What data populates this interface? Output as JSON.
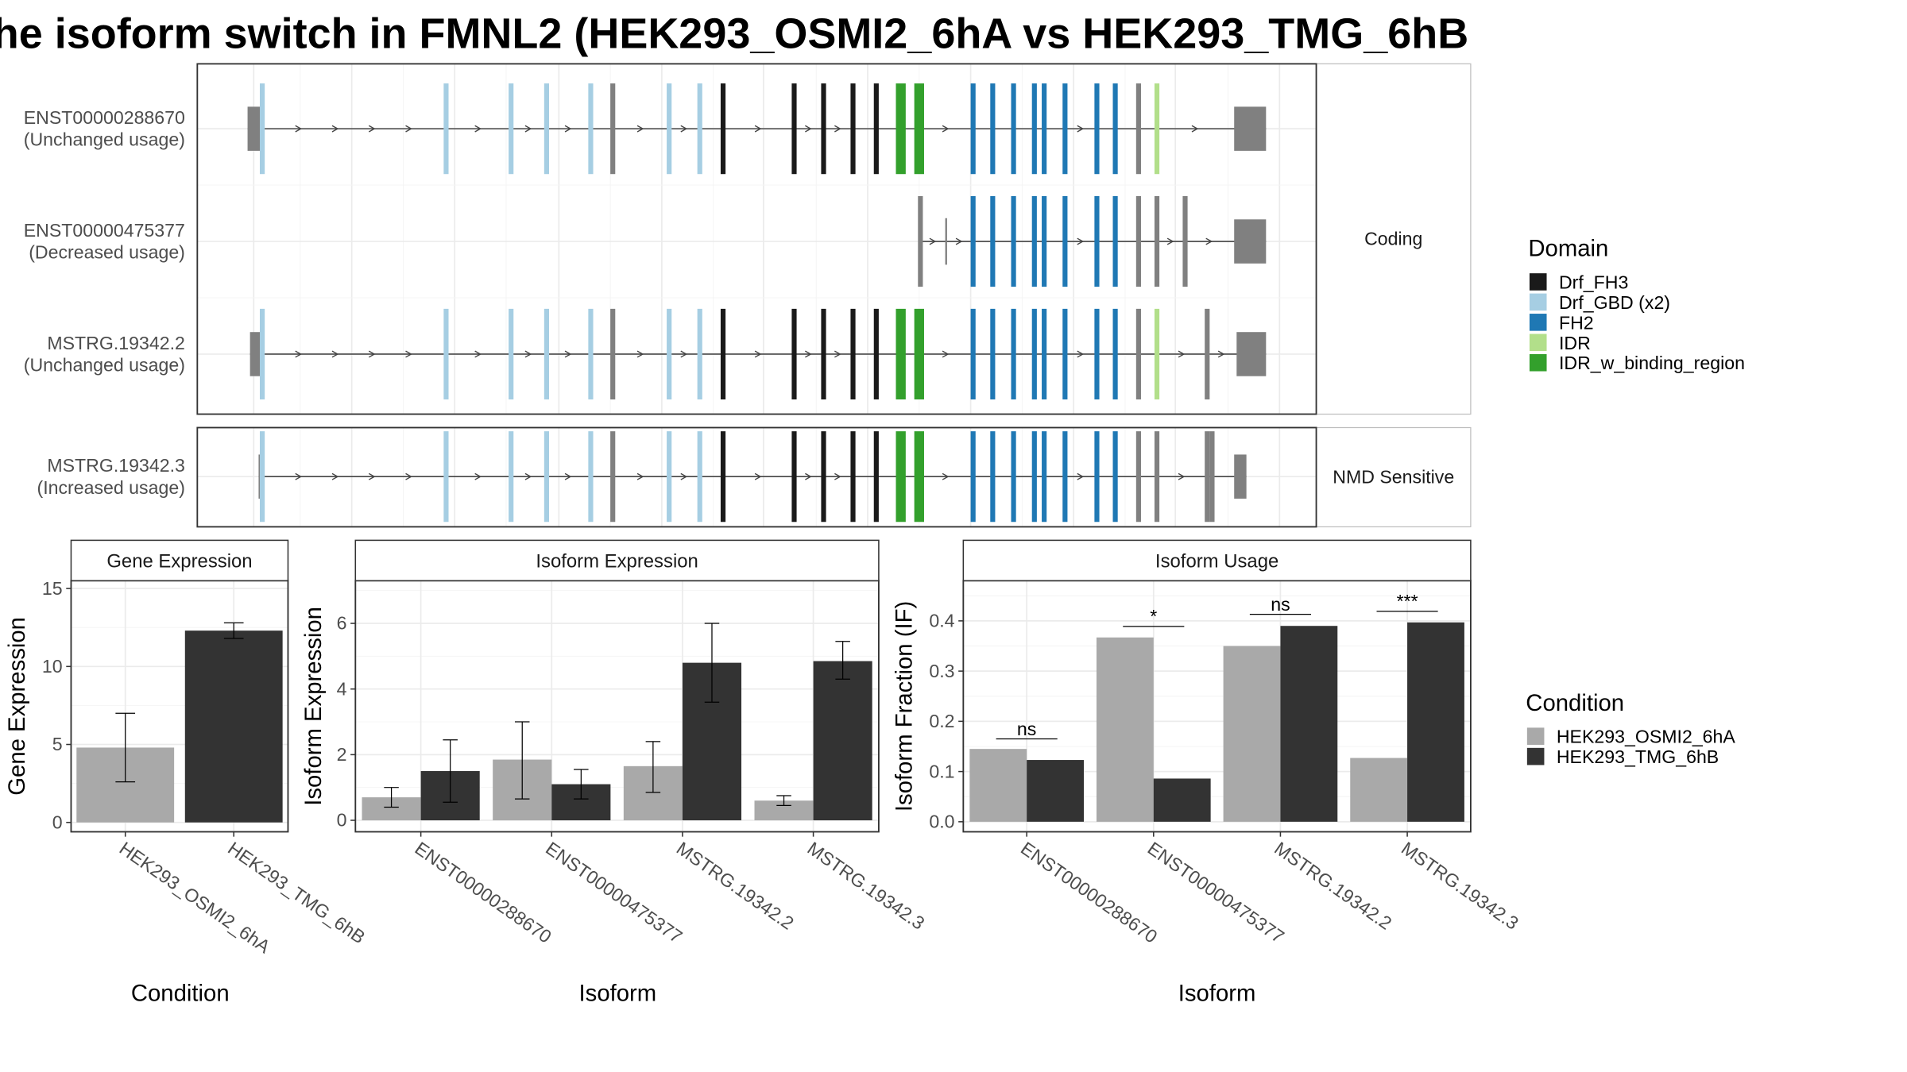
{
  "title": "he isoform switch in FMNL2 (HEK293_OSMI2_6hA vs HEK293_TMG_6hB",
  "colors": {
    "Drf_FH3": "#1a1a1a",
    "Drf_GBD (x2)": "#a6cee3",
    "FH2": "#1f78b4",
    "IDR": "#b2df8a",
    "IDR_w_binding_region": "#33a02c",
    "none": "#808080",
    "cond1": "#a9a9a9",
    "cond2": "#333333"
  },
  "structure": {
    "facets": [
      "Coding",
      "NMD Sensitive"
    ],
    "transcripts": [
      {
        "name": "ENST00000288670",
        "usage": "(Unchanged usage)",
        "facet": 0,
        "start": 202,
        "end": 1033,
        "utr5": [
          202,
          214
        ],
        "utr3": [
          1007,
          1033
        ],
        "exons": [
          [
            214,
            "Drf_GBD (x2)"
          ],
          [
            364,
            "Drf_GBD (x2)"
          ],
          [
            417,
            "Drf_GBD (x2)"
          ],
          [
            446,
            "Drf_GBD (x2)"
          ],
          [
            482,
            "Drf_GBD (x2)"
          ],
          [
            500,
            "none"
          ],
          [
            546,
            "Drf_GBD (x2)"
          ],
          [
            571,
            "Drf_GBD (x2)"
          ],
          [
            590,
            "Drf_FH3"
          ],
          [
            648,
            "Drf_FH3"
          ],
          [
            672,
            "Drf_FH3"
          ],
          [
            696,
            "Drf_FH3"
          ],
          [
            715,
            "Drf_FH3"
          ],
          [
            735,
            "IDR_w_binding_region"
          ],
          [
            750,
            "IDR_w_binding_region"
          ],
          [
            794,
            "FH2"
          ],
          [
            810,
            "FH2"
          ],
          [
            827,
            "FH2"
          ],
          [
            844,
            "FH2"
          ],
          [
            852,
            "FH2"
          ],
          [
            869,
            "FH2"
          ],
          [
            895,
            "FH2"
          ],
          [
            910,
            "FH2"
          ],
          [
            929,
            "none"
          ],
          [
            944,
            "IDR"
          ]
        ]
      },
      {
        "name": "ENST00000475377",
        "usage": "(Decreased usage)",
        "facet": 0,
        "start": 750,
        "end": 1033,
        "utr5": [
          750,
          750
        ],
        "utr3": [
          1007,
          1033
        ],
        "exons": [
          [
            751,
            "none"
          ],
          [
            772,
            "none"
          ],
          [
            794,
            "FH2"
          ],
          [
            810,
            "FH2"
          ],
          [
            827,
            "FH2"
          ],
          [
            844,
            "FH2"
          ],
          [
            852,
            "FH2"
          ],
          [
            869,
            "FH2"
          ],
          [
            895,
            "FH2"
          ],
          [
            910,
            "FH2"
          ],
          [
            929,
            "none"
          ],
          [
            944,
            "none"
          ],
          [
            967,
            "none"
          ]
        ]
      },
      {
        "name": "MSTRG.19342.2",
        "usage": "(Unchanged usage)",
        "facet": 0,
        "start": 204,
        "end": 1033,
        "utr5": [
          204,
          214
        ],
        "utr3": [
          1009,
          1033
        ],
        "exons": [
          [
            214,
            "Drf_GBD (x2)"
          ],
          [
            364,
            "Drf_GBD (x2)"
          ],
          [
            417,
            "Drf_GBD (x2)"
          ],
          [
            446,
            "Drf_GBD (x2)"
          ],
          [
            482,
            "Drf_GBD (x2)"
          ],
          [
            500,
            "none"
          ],
          [
            546,
            "Drf_GBD (x2)"
          ],
          [
            571,
            "Drf_GBD (x2)"
          ],
          [
            590,
            "Drf_FH3"
          ],
          [
            648,
            "Drf_FH3"
          ],
          [
            672,
            "Drf_FH3"
          ],
          [
            696,
            "Drf_FH3"
          ],
          [
            715,
            "Drf_FH3"
          ],
          [
            735,
            "IDR_w_binding_region"
          ],
          [
            750,
            "IDR_w_binding_region"
          ],
          [
            794,
            "FH2"
          ],
          [
            810,
            "FH2"
          ],
          [
            827,
            "FH2"
          ],
          [
            844,
            "FH2"
          ],
          [
            852,
            "FH2"
          ],
          [
            869,
            "FH2"
          ],
          [
            895,
            "FH2"
          ],
          [
            910,
            "FH2"
          ],
          [
            929,
            "none"
          ],
          [
            944,
            "IDR"
          ],
          [
            985,
            "none"
          ]
        ]
      },
      {
        "name": "MSTRG.19342.3",
        "usage": "(Increased usage)",
        "facet": 1,
        "start": 211,
        "end": 1017,
        "utr5": [
          211,
          214
        ],
        "utr3": [
          1007,
          1017
        ],
        "exons": [
          [
            214,
            "Drf_GBD (x2)"
          ],
          [
            364,
            "Drf_GBD (x2)"
          ],
          [
            417,
            "Drf_GBD (x2)"
          ],
          [
            446,
            "Drf_GBD (x2)"
          ],
          [
            482,
            "Drf_GBD (x2)"
          ],
          [
            500,
            "none"
          ],
          [
            546,
            "Drf_GBD (x2)"
          ],
          [
            571,
            "Drf_GBD (x2)"
          ],
          [
            590,
            "Drf_FH3"
          ],
          [
            648,
            "Drf_FH3"
          ],
          [
            672,
            "Drf_FH3"
          ],
          [
            696,
            "Drf_FH3"
          ],
          [
            715,
            "Drf_FH3"
          ],
          [
            735,
            "IDR_w_binding_region"
          ],
          [
            750,
            "IDR_w_binding_region"
          ],
          [
            794,
            "FH2"
          ],
          [
            810,
            "FH2"
          ],
          [
            827,
            "FH2"
          ],
          [
            844,
            "FH2"
          ],
          [
            852,
            "FH2"
          ],
          [
            869,
            "FH2"
          ],
          [
            895,
            "FH2"
          ],
          [
            910,
            "FH2"
          ],
          [
            929,
            "none"
          ],
          [
            944,
            "none"
          ],
          [
            985,
            "none"
          ],
          [
            989,
            "none"
          ]
        ]
      }
    ]
  },
  "legend_domain": {
    "title": "Domain",
    "items": [
      "Drf_FH3",
      "Drf_GBD (x2)",
      "FH2",
      "IDR",
      "IDR_w_binding_region"
    ]
  },
  "legend_condition": {
    "title": "Condition",
    "items": [
      "HEK293_OSMI2_6hA",
      "HEK293_TMG_6hB"
    ]
  },
  "chart_data": [
    {
      "type": "bar",
      "title": "Gene Expression",
      "xlabel": "Condition",
      "ylabel": "Gene Expression",
      "categories": [
        "HEK293_OSMI2_6hA",
        "HEK293_TMG_6hB"
      ],
      "values": [
        4.8,
        12.3
      ],
      "errors": [
        [
          2.6,
          7.0
        ],
        [
          11.8,
          12.8
        ]
      ],
      "ylim": [
        -0.6,
        15.5
      ],
      "yticks": [
        0,
        5,
        10,
        15
      ]
    },
    {
      "type": "bar",
      "title": "Isoform Expression",
      "xlabel": "Isoform",
      "ylabel": "Isoform Expression",
      "categories": [
        "ENST00000288670",
        "ENST00000475377",
        "MSTRG.19342.2",
        "MSTRG.19342.3"
      ],
      "series": [
        {
          "name": "HEK293_OSMI2_6hA",
          "values": [
            0.7,
            1.85,
            1.65,
            0.6
          ],
          "errors": [
            [
              0.4,
              1.0
            ],
            [
              0.65,
              3.0
            ],
            [
              0.85,
              2.4
            ],
            [
              0.45,
              0.75
            ]
          ]
        },
        {
          "name": "HEK293_TMG_6hB",
          "values": [
            1.5,
            1.1,
            4.8,
            4.85
          ],
          "errors": [
            [
              0.55,
              2.45
            ],
            [
              0.65,
              1.55
            ],
            [
              3.6,
              6.0
            ],
            [
              4.3,
              5.45
            ]
          ]
        }
      ],
      "ylim": [
        -0.35,
        7.3
      ],
      "yticks": [
        0,
        2,
        4,
        6
      ]
    },
    {
      "type": "bar",
      "title": "Isoform Usage",
      "xlabel": "Isoform",
      "ylabel": "Isoform Fraction (IF)",
      "categories": [
        "ENST00000288670",
        "ENST00000475377",
        "MSTRG.19342.2",
        "MSTRG.19342.3"
      ],
      "series": [
        {
          "name": "HEK293_OSMI2_6hA",
          "values": [
            0.145,
            0.367,
            0.35,
            0.127
          ]
        },
        {
          "name": "HEK293_TMG_6hB",
          "values": [
            0.123,
            0.086,
            0.39,
            0.397
          ]
        }
      ],
      "significance": [
        "ns",
        "*",
        "ns",
        "***"
      ],
      "sig_y": [
        0.165,
        0.389,
        0.413,
        0.419
      ],
      "ylim": [
        -0.02,
        0.48
      ],
      "yticks": [
        0.0,
        0.1,
        0.2,
        0.3,
        0.4
      ],
      "ytick_labels": [
        "0.0",
        "0.1",
        "0.2",
        "0.3",
        "0.4"
      ]
    }
  ]
}
